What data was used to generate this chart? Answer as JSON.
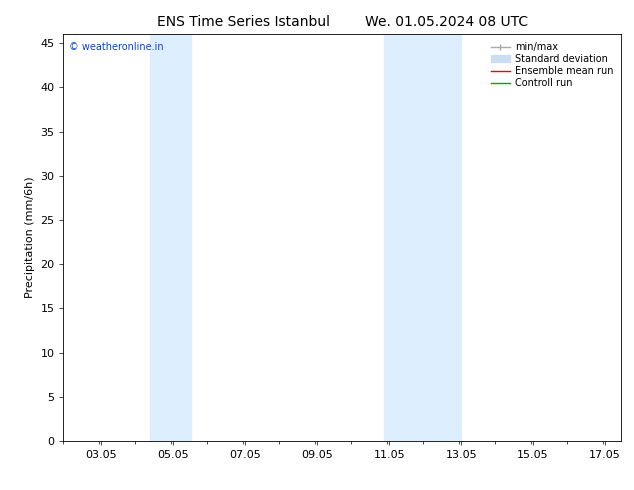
{
  "title_left": "ENS Time Series Istanbul",
  "title_right": "We. 01.05.2024 08 UTC",
  "ylabel": "Precipitation (mm/6h)",
  "xlim": [
    2.0,
    17.5
  ],
  "ylim": [
    0,
    46
  ],
  "yticks": [
    0,
    5,
    10,
    15,
    20,
    25,
    30,
    35,
    40,
    45
  ],
  "xtick_labels": [
    "03.05",
    "05.05",
    "07.05",
    "09.05",
    "11.05",
    "13.05",
    "15.05",
    "17.05"
  ],
  "xtick_positions": [
    3.05,
    5.05,
    7.05,
    9.05,
    11.05,
    13.05,
    15.05,
    17.05
  ],
  "shaded_regions": [
    {
      "xmin": 4.4,
      "xmax": 5.55,
      "color": "#ddeeff"
    },
    {
      "xmin": 10.9,
      "xmax": 13.05,
      "color": "#ddeeff"
    }
  ],
  "watermark_text": "© weatheronline.in",
  "watermark_color": "#1144cc",
  "legend_entries": [
    {
      "label": "min/max",
      "color": "#aaaaaa",
      "lw": 1.0,
      "style": "solid"
    },
    {
      "label": "Standard deviation",
      "color": "#ccddf0",
      "lw": 6,
      "style": "solid"
    },
    {
      "label": "Ensemble mean run",
      "color": "#ff0000",
      "lw": 1.0,
      "style": "solid"
    },
    {
      "label": "Controll run",
      "color": "#00aa00",
      "lw": 1.0,
      "style": "solid"
    }
  ],
  "background_color": "#ffffff",
  "spine_color": "#000000",
  "title_fontsize": 10,
  "tick_fontsize": 8,
  "ylabel_fontsize": 8,
  "watermark_fontsize": 7,
  "legend_fontsize": 7
}
